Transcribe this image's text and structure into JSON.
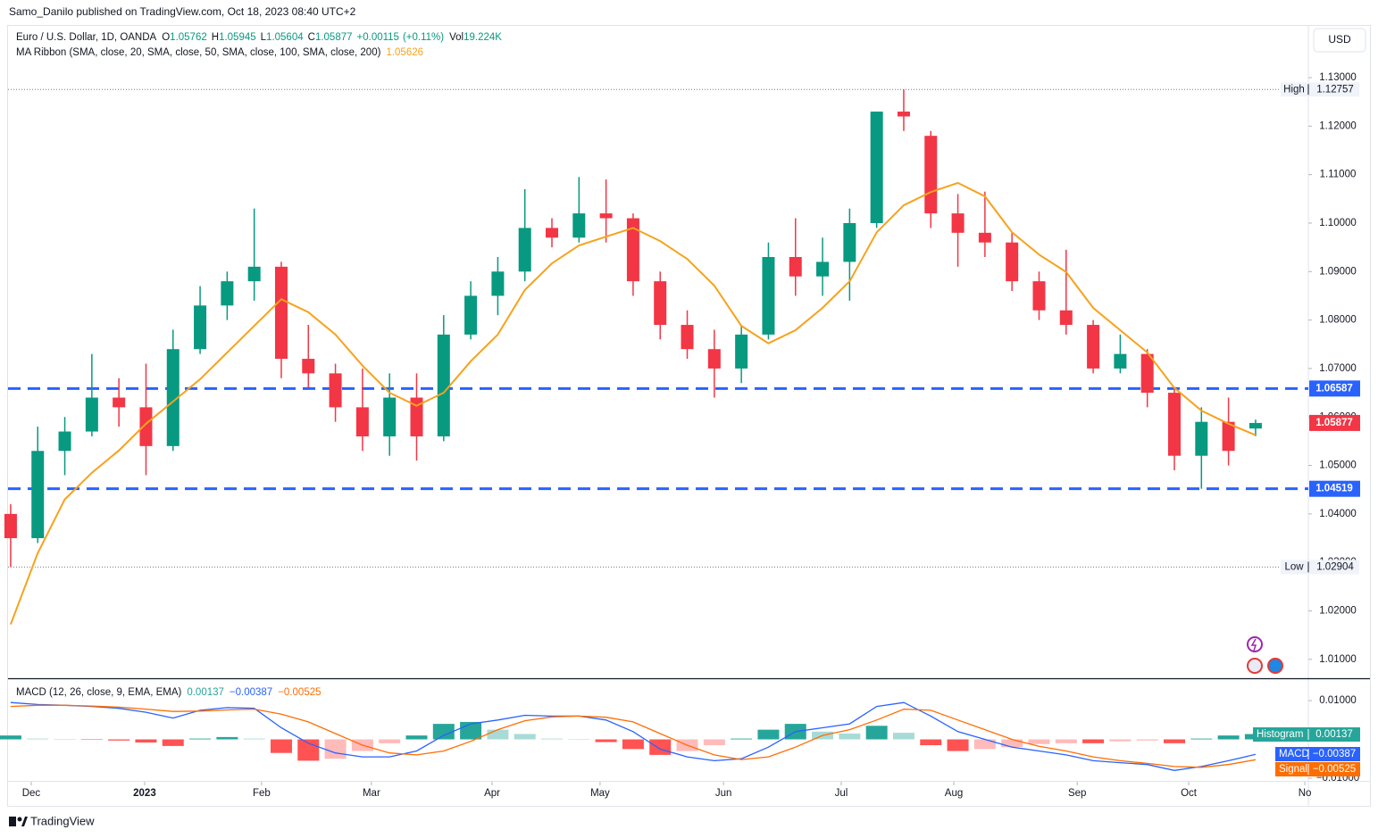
{
  "header": {
    "byline": "Samo_Danilo published on TradingView.com, Oct 18, 2023 08:40 UTC+2",
    "brand": "TradingView"
  },
  "chart_data": [
    {
      "type": "candlestick",
      "title": "Euro / U.S. Dollar, 1D, OANDA",
      "currency": "USD",
      "ohlc_labels": [
        "O",
        "H",
        "L",
        "C"
      ],
      "change": {
        "value": 0.00115,
        "label": "+0.00115"
      },
      "change_pct": {
        "value": 0.11,
        "label": "(+0.11%)"
      },
      "volume_label": "Vol",
      "volume": "19.224K",
      "up_color": "#089981",
      "down_color": "#f23645",
      "categories": [
        null,
        null,
        null,
        null,
        null,
        null,
        null,
        null,
        null,
        null,
        null,
        null,
        null,
        null,
        null,
        null,
        null,
        null,
        null,
        null,
        null,
        null,
        null,
        null,
        null,
        null,
        null,
        null,
        null,
        null,
        null,
        null,
        null,
        null,
        null,
        null,
        null,
        null,
        null,
        null,
        null,
        null,
        null,
        null,
        null,
        null,
        null
      ],
      "open": [
        1.04,
        1.035,
        1.053,
        1.057,
        1.064,
        1.062,
        1.054,
        1.074,
        1.083,
        1.088,
        1.091,
        1.072,
        1.069,
        1.062,
        1.056,
        1.064,
        1.056,
        1.077,
        1.085,
        1.09,
        1.099,
        1.097,
        1.102,
        1.101,
        1.088,
        1.079,
        1.074,
        1.07,
        1.077,
        1.093,
        1.089,
        1.092,
        1.1,
        1.123,
        1.118,
        1.102,
        1.098,
        1.096,
        1.088,
        1.082,
        1.079,
        1.07,
        1.073,
        1.065,
        1.052,
        1.059,
        1.05762
      ],
      "high": [
        1.042,
        1.058,
        1.06,
        1.073,
        1.068,
        1.071,
        1.078,
        1.087,
        1.09,
        1.103,
        1.092,
        1.079,
        1.071,
        1.07,
        1.069,
        1.069,
        1.081,
        1.088,
        1.093,
        1.107,
        1.101,
        1.1095,
        1.109,
        1.102,
        1.09,
        1.082,
        1.078,
        1.079,
        1.096,
        1.101,
        1.097,
        1.103,
        1.123,
        1.12757,
        1.119,
        1.106,
        1.1065,
        1.098,
        1.09,
        1.0945,
        1.08,
        1.077,
        1.074,
        1.066,
        1.062,
        1.064,
        1.05945
      ],
      "low": [
        1.02904,
        1.034,
        1.048,
        1.056,
        1.058,
        1.048,
        1.053,
        1.073,
        1.08,
        1.084,
        1.068,
        1.066,
        1.059,
        1.053,
        1.052,
        1.051,
        1.055,
        1.076,
        1.081,
        1.088,
        1.095,
        1.096,
        1.096,
        1.085,
        1.076,
        1.072,
        1.064,
        1.067,
        1.076,
        1.085,
        1.085,
        1.084,
        1.099,
        1.119,
        1.099,
        1.091,
        1.093,
        1.086,
        1.08,
        1.077,
        1.069,
        1.069,
        1.062,
        1.049,
        1.04519,
        1.05,
        1.05604
      ],
      "close": [
        1.035,
        1.053,
        1.057,
        1.064,
        1.062,
        1.054,
        1.074,
        1.083,
        1.088,
        1.091,
        1.072,
        1.069,
        1.062,
        1.056,
        1.064,
        1.056,
        1.077,
        1.085,
        1.09,
        1.099,
        1.097,
        1.102,
        1.101,
        1.088,
        1.079,
        1.074,
        1.07,
        1.077,
        1.093,
        1.089,
        1.092,
        1.1,
        1.123,
        1.122,
        1.102,
        1.098,
        1.096,
        1.088,
        1.082,
        1.079,
        1.07,
        1.073,
        1.065,
        1.052,
        1.059,
        1.053,
        1.05877
      ],
      "ma": {
        "name": "MA Ribbon (SMA, close, 20, SMA, close, 50, SMA, close, 100, SMA, close, 200)",
        "color": "#f7a21b",
        "values": [
          1.0172,
          1.0319,
          1.043,
          1.0485,
          1.0531,
          1.0586,
          1.0632,
          1.0678,
          1.0733,
          1.0788,
          1.0843,
          1.0816,
          1.077,
          1.0706,
          1.065,
          1.0623,
          1.065,
          1.0715,
          1.077,
          1.0862,
          1.0917,
          1.0954,
          1.0972,
          1.099,
          1.0963,
          1.0926,
          1.0871,
          1.0788,
          1.0752,
          1.0779,
          1.0825,
          1.088,
          1.0981,
          1.1037,
          1.1064,
          1.1083,
          1.1055,
          1.0981,
          1.0935,
          1.0899,
          1.0825,
          1.0779,
          1.0733,
          1.066,
          1.0613,
          1.0586,
          1.05626
        ]
      },
      "high_label": "High",
      "low_label": "Low",
      "high_index": 33,
      "low_index": 0,
      "levels": [
        1.06587,
        1.04519
      ],
      "level_color": "#2962ff",
      "xlim": [
        -0.13,
        47.95
      ],
      "xticks": [
        {
          "value": 0.76,
          "label": "Dec"
        },
        {
          "value": 4.95,
          "label": "2023"
        },
        {
          "value": 9.27,
          "label": "Feb"
        },
        {
          "value": 13.33,
          "label": "Mar"
        },
        {
          "value": 17.79,
          "label": "Apr"
        },
        {
          "value": 21.78,
          "label": "May"
        },
        {
          "value": 26.34,
          "label": "Jun"
        },
        {
          "value": 30.69,
          "label": "Jul"
        },
        {
          "value": 34.85,
          "label": "Aug"
        },
        {
          "value": 39.41,
          "label": "Sep"
        },
        {
          "value": 43.53,
          "label": "Oct"
        },
        {
          "value": 47.82,
          "label": "No"
        }
      ],
      "ylim": [
        1.0061,
        1.1405
      ],
      "yticks": [
        {
          "value": 1.13,
          "label": "1.13000"
        },
        {
          "value": 1.12,
          "label": "1.12000"
        },
        {
          "value": 1.11,
          "label": "1.11000"
        },
        {
          "value": 1.1,
          "label": "1.10000"
        },
        {
          "value": 1.09,
          "label": "1.09000"
        },
        {
          "value": 1.08,
          "label": "1.08000"
        },
        {
          "value": 1.07,
          "label": "1.07000"
        },
        {
          "value": 1.06,
          "label": "1.06000"
        },
        {
          "value": 1.05,
          "label": "1.05000"
        },
        {
          "value": 1.04,
          "label": "1.04000"
        },
        {
          "value": 1.03,
          "label": "1.03000"
        },
        {
          "value": 1.02,
          "label": "1.02000"
        },
        {
          "value": 1.01,
          "label": "1.01000"
        }
      ],
      "grid": false
    },
    {
      "type": "macd",
      "title": "MACD (12, 26, close, 9, EMA, EMA)",
      "ylim": [
        -0.0107,
        0.0153
      ],
      "yticks": [
        {
          "value": 0.01,
          "label": "0.01000"
        },
        {
          "value": -0.01,
          "label": "−0.01000"
        }
      ],
      "series": [
        {
          "name": "Histogram",
          "color": "#26a69a",
          "negative_color": "#ff5252",
          "values": [
            0.001,
            0.0002,
            0.0,
            -0.0001,
            -0.0003,
            -0.0008,
            -0.0017,
            0.0002,
            0.0006,
            0.0002,
            -0.0035,
            -0.0055,
            -0.005,
            -0.003,
            -0.001,
            0.001,
            0.004,
            0.0045,
            0.0025,
            0.0014,
            0.0002,
            0.0,
            -0.0007,
            -0.0025,
            -0.004,
            -0.003,
            -0.0015,
            0.0002,
            0.0025,
            0.004,
            0.002,
            0.0015,
            0.0035,
            0.0017,
            -0.0015,
            -0.003,
            -0.0025,
            -0.002,
            -0.0012,
            -0.001,
            -0.001,
            -0.0005,
            -0.0003,
            -0.001,
            0.0002,
            0.001,
            0.00137
          ]
        },
        {
          "name": "MACD",
          "color": "#2962ff",
          "last_label": "−0.00387",
          "values": [
            0.0095,
            0.009,
            0.0088,
            0.0085,
            0.008,
            0.007,
            0.0055,
            0.0075,
            0.0082,
            0.008,
            0.003,
            -0.001,
            -0.0035,
            -0.0045,
            -0.0045,
            -0.003,
            0.001,
            0.004,
            0.005,
            0.0062,
            0.006,
            0.006,
            0.005,
            0.002,
            -0.0025,
            -0.0045,
            -0.0055,
            -0.005,
            -0.002,
            0.002,
            0.003,
            0.004,
            0.0085,
            0.0095,
            0.006,
            0.002,
            0.0,
            -0.002,
            -0.003,
            -0.004,
            -0.0055,
            -0.006,
            -0.0065,
            -0.008,
            -0.007,
            -0.0055,
            -0.00387
          ]
        },
        {
          "name": "Signal",
          "color": "#ff6d00",
          "last_label": "−0.00525",
          "values": [
            0.0085,
            0.0088,
            0.0088,
            0.0086,
            0.0083,
            0.0078,
            0.0072,
            0.0073,
            0.0076,
            0.0078,
            0.0065,
            0.0045,
            0.0015,
            -0.0015,
            -0.0035,
            -0.004,
            -0.003,
            -0.0005,
            0.0025,
            0.0048,
            0.0058,
            0.006,
            0.0057,
            0.0045,
            0.0015,
            -0.0015,
            -0.004,
            -0.0052,
            -0.0045,
            -0.002,
            0.001,
            0.0025,
            0.005,
            0.0078,
            0.0075,
            0.005,
            0.0025,
            0.0,
            -0.0018,
            -0.003,
            -0.0045,
            -0.0055,
            -0.0062,
            -0.007,
            -0.0072,
            -0.0065,
            -0.00525
          ]
        }
      ]
    }
  ]
}
